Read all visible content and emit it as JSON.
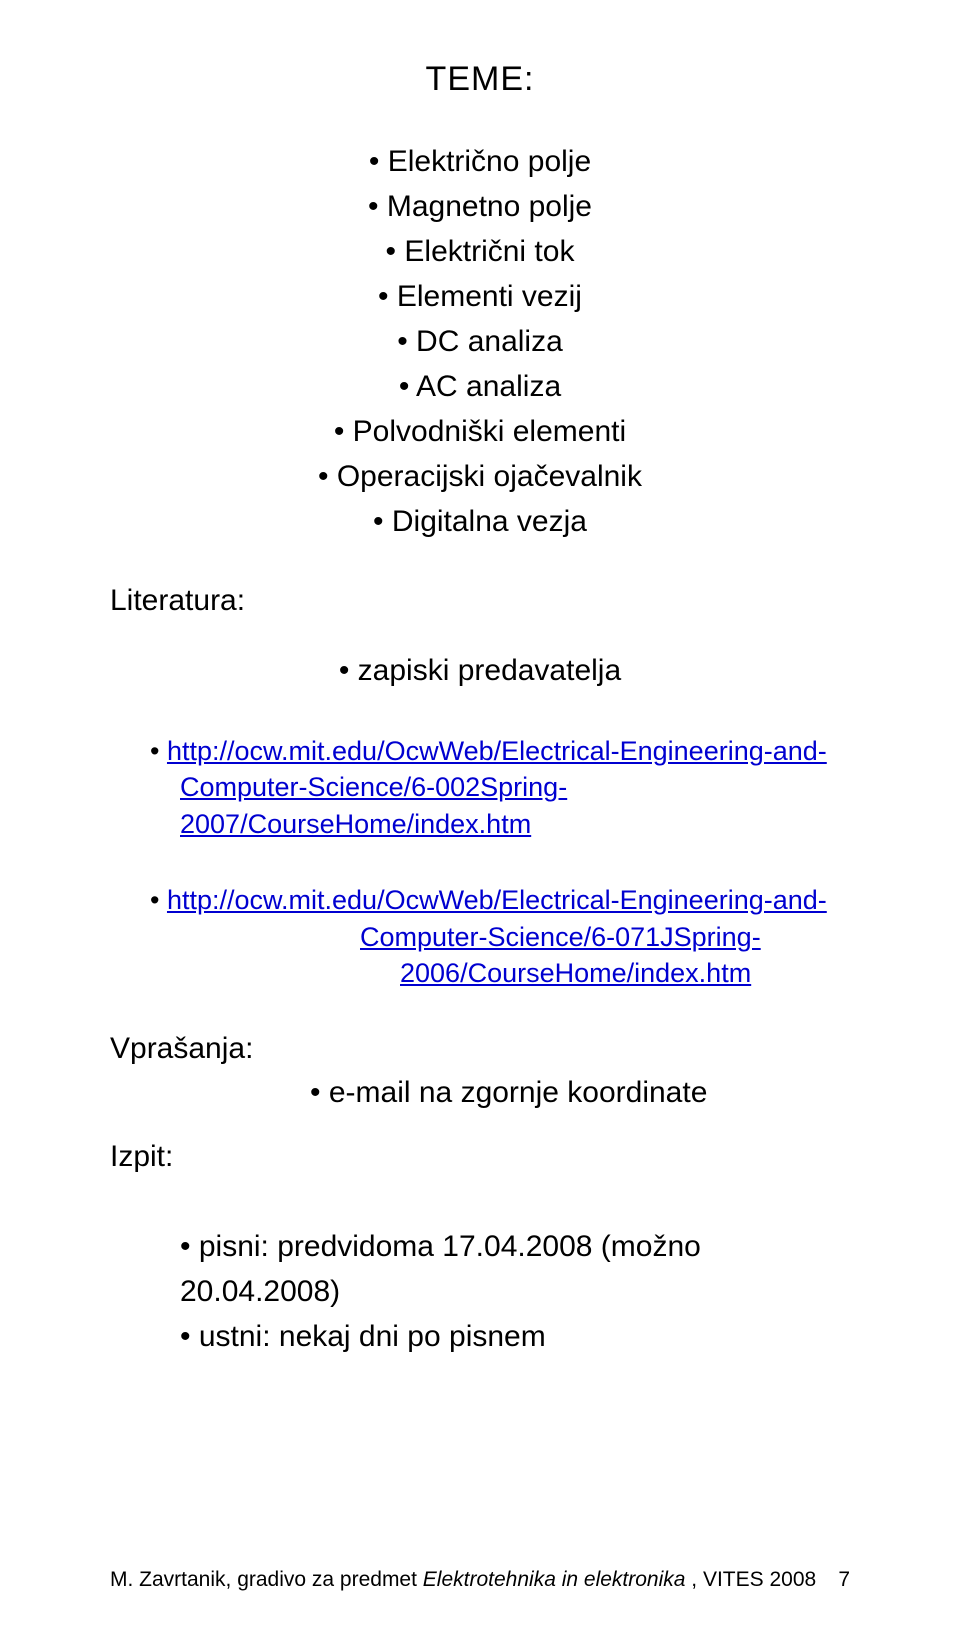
{
  "title": "TEME:",
  "topics": [
    "Električno polje",
    "Magnetno polje",
    "Električni tok",
    "Elementi vezij",
    "DC analiza",
    "AC analiza",
    "Polvodniški elementi",
    "Operacijski ojačevalnik",
    "Digitalna vezja"
  ],
  "literature_label": "Literatura:",
  "literature_note": "zapiski predavatelja",
  "link1": {
    "prefix": "http://ocw.mit.edu/OcwWeb/Electrical-Engineering-and-",
    "suffix": "Computer-Science/6-002Spring-2007/CourseHome/index.htm"
  },
  "link2": {
    "prefix": "http://ocw.mit.edu/OcwWeb/Electrical-Engineering-and-",
    "mid": "Computer-Science/6-071JSpring-",
    "suffix": "2006/CourseHome/index.htm"
  },
  "questions_label": "Vprašanja:",
  "questions_answer": "e-mail na zgornje koordinate",
  "exam_label": "Izpit:",
  "exam_items": [
    "pisni: predvidoma 17.04.2008 (možno 20.04.2008)",
    "ustni: nekaj dni po pisnem"
  ],
  "footer": {
    "author": "M. Zavrtanik, gradivo za predmet ",
    "course": "Elektrotehnika in elektronika ",
    "meta": ",  VITES 2008",
    "page": "7"
  },
  "colors": {
    "text": "#000000",
    "link": "#0000d0",
    "background": "#ffffff"
  },
  "typography": {
    "title_fontsize": 34,
    "body_fontsize": 30,
    "link_fontsize": 27,
    "footer_fontsize": 21
  }
}
